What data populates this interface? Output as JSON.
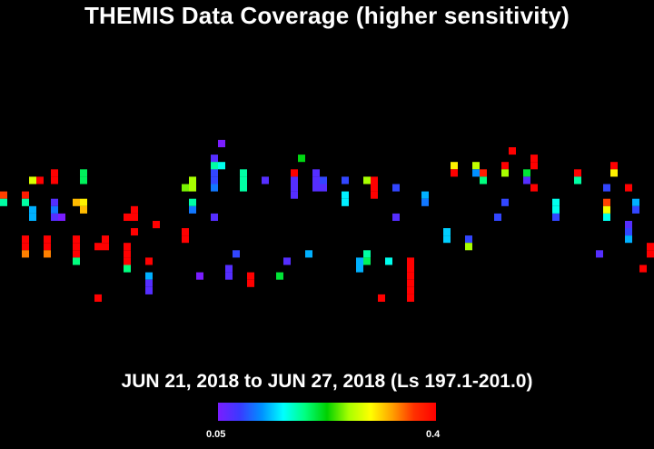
{
  "chart_data": {
    "type": "heatmap",
    "title": "THEMIS Data Coverage (higher sensitivity)",
    "subtitle": "JUN 21, 2018 to JUN 27, 2018 (Ls 197.1-201.0)",
    "colorbar": {
      "min_label": "0.05",
      "max_label": "0.4",
      "min": 0.05,
      "max": 0.4,
      "colors": [
        "#7a1dff",
        "#3a3aff",
        "#0090ff",
        "#00ffff",
        "#00ff7f",
        "#00d000",
        "#a8ff00",
        "#ffff00",
        "#ffa000",
        "#ff3000",
        "#ff0000"
      ]
    },
    "grid": {
      "columns": 90,
      "rows": 61
    },
    "tracks": [
      {
        "col": 0,
        "row_start": 26,
        "values": [
          0.36,
          0.18
        ]
      },
      {
        "col": 3,
        "row_start": 26,
        "values": [
          0.38,
          0.18
        ]
      },
      {
        "col": 3,
        "row_start": 32,
        "values": [
          0.4,
          0.4,
          0.34
        ]
      },
      {
        "col": 4,
        "row_start": 24,
        "values": [
          0.28
        ]
      },
      {
        "col": 4,
        "row_start": 28,
        "values": [
          0.13,
          0.13
        ]
      },
      {
        "col": 5,
        "row_start": 24,
        "values": [
          0.4
        ]
      },
      {
        "col": 6,
        "row_start": 32,
        "values": [
          0.4,
          0.4,
          0.34
        ]
      },
      {
        "col": 7,
        "row_start": 23,
        "values": [
          0.4,
          0.4
        ]
      },
      {
        "col": 7,
        "row_start": 27,
        "values": [
          0.07,
          0.11,
          0.07
        ]
      },
      {
        "col": 8,
        "row_start": 29,
        "values": [
          0.05
        ]
      },
      {
        "col": 10,
        "row_start": 27,
        "values": [
          0.32
        ]
      },
      {
        "col": 10,
        "row_start": 32,
        "values": [
          0.4,
          0.4,
          0.4,
          0.19
        ]
      },
      {
        "col": 11,
        "row_start": 23,
        "values": [
          0.2,
          0.2
        ]
      },
      {
        "col": 11,
        "row_start": 27,
        "values": [
          0.3,
          0.32
        ]
      },
      {
        "col": 13,
        "row_start": 40,
        "values": [
          0.4
        ]
      },
      {
        "col": 13,
        "row_start": 33,
        "values": [
          0.4
        ]
      },
      {
        "col": 14,
        "row_start": 32,
        "values": [
          0.4,
          0.4
        ]
      },
      {
        "col": 17,
        "row_start": 29,
        "values": [
          0.4
        ]
      },
      {
        "col": 17,
        "row_start": 33,
        "values": [
          0.4,
          0.4,
          0.4,
          0.19
        ]
      },
      {
        "col": 18,
        "row_start": 28,
        "values": [
          0.4,
          0.4
        ]
      },
      {
        "col": 18,
        "row_start": 31,
        "values": [
          0.4
        ]
      },
      {
        "col": 20,
        "row_start": 37,
        "values": [
          0.13,
          0.07,
          0.07
        ]
      },
      {
        "col": 20,
        "row_start": 35,
        "values": [
          0.4
        ]
      },
      {
        "col": 21,
        "row_start": 30,
        "values": [
          0.4
        ]
      },
      {
        "col": 25,
        "row_start": 31,
        "values": [
          0.4,
          0.4
        ]
      },
      {
        "col": 25,
        "row_start": 25,
        "values": [
          0.25
        ]
      },
      {
        "col": 26,
        "row_start": 24,
        "values": [
          0.26,
          0.26
        ]
      },
      {
        "col": 26,
        "row_start": 27,
        "values": [
          0.18,
          0.11
        ]
      },
      {
        "col": 27,
        "row_start": 37,
        "values": [
          0.05
        ]
      },
      {
        "col": 29,
        "row_start": 21,
        "values": [
          0.07,
          0.07,
          0.09,
          0.09,
          0.11
        ]
      },
      {
        "col": 29,
        "row_start": 22,
        "values": [
          0.18
        ]
      },
      {
        "col": 29,
        "row_start": 29,
        "values": [
          0.07
        ]
      },
      {
        "col": 30,
        "row_start": 19,
        "values": [
          0.05
        ]
      },
      {
        "col": 30,
        "row_start": 22,
        "values": [
          0.16
        ]
      },
      {
        "col": 31,
        "row_start": 36,
        "values": [
          0.07,
          0.07
        ]
      },
      {
        "col": 32,
        "row_start": 34,
        "values": [
          0.09
        ]
      },
      {
        "col": 33,
        "row_start": 23,
        "values": [
          0.18,
          0.18,
          0.18
        ]
      },
      {
        "col": 34,
        "row_start": 37,
        "values": [
          0.4,
          0.4
        ]
      },
      {
        "col": 36,
        "row_start": 24,
        "values": [
          0.07
        ]
      },
      {
        "col": 38,
        "row_start": 37,
        "values": [
          0.21
        ]
      },
      {
        "col": 39,
        "row_start": 35,
        "values": [
          0.07
        ]
      },
      {
        "col": 40,
        "row_start": 23,
        "values": [
          0.4,
          0.07,
          0.07,
          0.07
        ]
      },
      {
        "col": 41,
        "row_start": 21,
        "values": [
          0.22
        ]
      },
      {
        "col": 42,
        "row_start": 34,
        "values": [
          0.13
        ]
      },
      {
        "col": 43,
        "row_start": 23,
        "values": [
          0.07,
          0.07,
          0.07
        ]
      },
      {
        "col": 44,
        "row_start": 24,
        "values": [
          0.09,
          0.07
        ]
      },
      {
        "col": 47,
        "row_start": 24,
        "values": [
          0.09
        ]
      },
      {
        "col": 47,
        "row_start": 26,
        "values": [
          0.15,
          0.15
        ]
      },
      {
        "col": 49,
        "row_start": 35,
        "values": [
          0.13,
          0.13
        ]
      },
      {
        "col": 50,
        "row_start": 34,
        "values": [
          0.18,
          0.2
        ]
      },
      {
        "col": 50,
        "row_start": 24,
        "values": [
          0.26
        ]
      },
      {
        "col": 51,
        "row_start": 24,
        "values": [
          0.4,
          0.4,
          0.4
        ]
      },
      {
        "col": 52,
        "row_start": 40,
        "values": [
          0.4
        ]
      },
      {
        "col": 53,
        "row_start": 35,
        "values": [
          0.16
        ]
      },
      {
        "col": 54,
        "row_start": 25,
        "values": [
          0.09
        ]
      },
      {
        "col": 54,
        "row_start": 29,
        "values": [
          0.07
        ]
      },
      {
        "col": 56,
        "row_start": 35,
        "values": [
          0.4,
          0.4,
          0.4,
          0.4,
          0.4,
          0.4
        ]
      },
      {
        "col": 58,
        "row_start": 26,
        "values": [
          0.13,
          0.11
        ]
      },
      {
        "col": 61,
        "row_start": 31,
        "values": [
          0.14,
          0.14
        ]
      },
      {
        "col": 62,
        "row_start": 22,
        "values": [
          0.3,
          0.4
        ]
      },
      {
        "col": 64,
        "row_start": 32,
        "values": [
          0.09,
          0.26
        ]
      },
      {
        "col": 65,
        "row_start": 22,
        "values": [
          0.27,
          0.12
        ]
      },
      {
        "col": 66,
        "row_start": 23,
        "values": [
          0.38,
          0.19
        ]
      },
      {
        "col": 68,
        "row_start": 29,
        "values": [
          0.09
        ]
      },
      {
        "col": 69,
        "row_start": 22,
        "values": [
          0.4,
          0.26
        ]
      },
      {
        "col": 69,
        "row_start": 27,
        "values": [
          0.09
        ]
      },
      {
        "col": 70,
        "row_start": 20,
        "values": [
          0.4
        ]
      },
      {
        "col": 72,
        "row_start": 23,
        "values": [
          0.21,
          0.07
        ]
      },
      {
        "col": 73,
        "row_start": 21,
        "values": [
          0.4,
          0.4
        ]
      },
      {
        "col": 73,
        "row_start": 25,
        "values": [
          0.4
        ]
      },
      {
        "col": 76,
        "row_start": 27,
        "values": [
          0.16,
          0.16,
          0.09
        ]
      },
      {
        "col": 79,
        "row_start": 23,
        "values": [
          0.4,
          0.18
        ]
      },
      {
        "col": 82,
        "row_start": 34,
        "values": [
          0.07
        ]
      },
      {
        "col": 83,
        "row_start": 25,
        "values": [
          0.09
        ]
      },
      {
        "col": 83,
        "row_start": 27,
        "values": [
          0.36,
          0.29,
          0.16
        ]
      },
      {
        "col": 84,
        "row_start": 22,
        "values": [
          0.4,
          0.3
        ]
      },
      {
        "col": 86,
        "row_start": 25,
        "values": [
          0.4
        ]
      },
      {
        "col": 86,
        "row_start": 30,
        "values": [
          0.07,
          0.09,
          0.13
        ]
      },
      {
        "col": 87,
        "row_start": 27,
        "values": [
          0.13,
          0.09
        ]
      },
      {
        "col": 88,
        "row_start": 36,
        "values": [
          0.4
        ]
      },
      {
        "col": 89,
        "row_start": 33,
        "values": [
          0.4,
          0.4
        ]
      }
    ]
  }
}
